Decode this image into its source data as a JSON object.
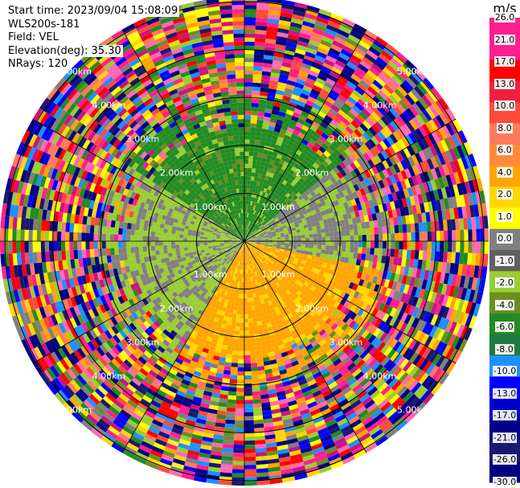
{
  "meta": {
    "start_time": "Start time: 2023/09/04 15:08:09",
    "instrument": "WLS200s-181",
    "field": "Field: VEL",
    "elevation": "Elevation(deg): 35.30",
    "nrays": "NRays: 120"
  },
  "colorbar": {
    "unit": "m/s",
    "ticks": [
      "26.0",
      "21.0",
      "17.0",
      "13.0",
      "10.0",
      "8.0",
      "6.0",
      "4.0",
      "2.0",
      "1.0",
      "0.0",
      "-1.0",
      "-2.0",
      "-4.0",
      "-6.0",
      "-8.0",
      "-10.0",
      "-13.0",
      "-17.0",
      "-21.0",
      "-26.0",
      "-30.0"
    ],
    "colors": [
      "#ff1f8f",
      "#ff1f8f",
      "#ff0000",
      "#f02040",
      "#ff4a3a",
      "#ff7a5a",
      "#ff8a3a",
      "#ffa500",
      "#ffd700",
      "#ffff00",
      "#808080",
      "#606060",
      "#9acd32",
      "#6b8e23",
      "#228b22",
      "#1e7b3f",
      "#1e90ff",
      "#0000ff",
      "#0000cd",
      "#00008b",
      "#191970",
      "#000080"
    ]
  },
  "range_rings": {
    "labels": [
      "1.00km",
      "2.00km",
      "3.00km",
      "4.00km",
      "5.00km"
    ]
  },
  "chart_data": {
    "type": "heatmap",
    "projection": "ppi",
    "title": "",
    "field": "VEL",
    "unit": "m/s",
    "nrays": 120,
    "elevation_deg": 35.3,
    "range_rings_km": [
      1,
      2,
      3,
      4,
      5
    ],
    "vmin": -30.0,
    "vmax": 26.0,
    "near_range_pattern": [
      {
        "sector": "north",
        "range_km": [
          0,
          2.5
        ],
        "velocity_ms": -5
      },
      {
        "sector": "west",
        "range_km": [
          0,
          2.5
        ],
        "velocity_ms": -2
      },
      {
        "sector": "east",
        "range_km": [
          0,
          2.5
        ],
        "velocity_ms": 0
      },
      {
        "sector": "south-southeast",
        "range_km": [
          0,
          2.5
        ],
        "velocity_ms": 5
      }
    ],
    "far_range_pattern": "noisy, all colors"
  }
}
